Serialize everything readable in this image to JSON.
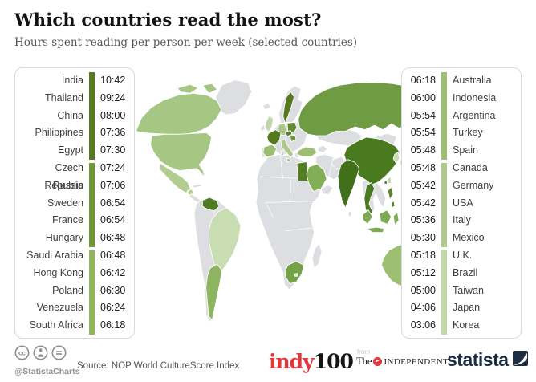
{
  "header": {
    "title": "Which countries read the most?",
    "subtitle": "Hours spent reading per person per week (selected countries)"
  },
  "chart_data": {
    "type": "heatmap",
    "subtype": "world-choropleth-with-ranked-lists",
    "title": "Which countries read the most?",
    "subtitle": "Hours spent reading per person per week (selected countries)",
    "unit": "hours:minutes per person per week",
    "series": [
      {
        "country": "India",
        "time": "10:42",
        "minutes": 642
      },
      {
        "country": "Thailand",
        "time": "09:24",
        "minutes": 564
      },
      {
        "country": "China",
        "time": "08:00",
        "minutes": 480
      },
      {
        "country": "Philippines",
        "time": "07:36",
        "minutes": 456
      },
      {
        "country": "Egypt",
        "time": "07:30",
        "minutes": 450
      },
      {
        "country": "Czech Republic",
        "time": "07:24",
        "minutes": 444
      },
      {
        "country": "Russia",
        "time": "07:06",
        "minutes": 426
      },
      {
        "country": "Sweden",
        "time": "06:54",
        "minutes": 414
      },
      {
        "country": "France",
        "time": "06:54",
        "minutes": 414
      },
      {
        "country": "Hungary",
        "time": "06:48",
        "minutes": 408
      },
      {
        "country": "Saudi Arabia",
        "time": "06:48",
        "minutes": 408
      },
      {
        "country": "Hong Kong",
        "time": "06:42",
        "minutes": 402
      },
      {
        "country": "Poland",
        "time": "06:30",
        "minutes": 390
      },
      {
        "country": "Venezuela",
        "time": "06:24",
        "minutes": 384
      },
      {
        "country": "South Africa",
        "time": "06:18",
        "minutes": 378
      },
      {
        "country": "Australia",
        "time": "06:18",
        "minutes": 378
      },
      {
        "country": "Indonesia",
        "time": "06:00",
        "minutes": 360
      },
      {
        "country": "Argentina",
        "time": "05:54",
        "minutes": 354
      },
      {
        "country": "Turkey",
        "time": "05:54",
        "minutes": 354
      },
      {
        "country": "Spain",
        "time": "05:48",
        "minutes": 348
      },
      {
        "country": "Canada",
        "time": "05:48",
        "minutes": 348
      },
      {
        "country": "Germany",
        "time": "05:42",
        "minutes": 342
      },
      {
        "country": "USA",
        "time": "05:42",
        "minutes": 342
      },
      {
        "country": "Italy",
        "time": "05:36",
        "minutes": 336
      },
      {
        "country": "Mexico",
        "time": "05:30",
        "minutes": 330
      },
      {
        "country": "U.K.",
        "time": "05:18",
        "minutes": 318
      },
      {
        "country": "Brazil",
        "time": "05:12",
        "minutes": 312
      },
      {
        "country": "Taiwan",
        "time": "05:00",
        "minutes": 300
      },
      {
        "country": "Japan",
        "time": "04:06",
        "minutes": 246
      },
      {
        "country": "Korea",
        "time": "03:06",
        "minutes": 186
      }
    ],
    "legend_position": "side-panels"
  },
  "left_panel": {
    "group_colors": [
      "#57791f",
      "#6f9737",
      "#8fb55f"
    ]
  },
  "right_panel": {
    "group_colors": [
      "#9cbf72",
      "#adca8a",
      "#c2d8a7"
    ]
  },
  "map": {
    "base_color": "#dcdee2",
    "colors": {
      "alaska": "#a6c683",
      "canada": "#a6c683",
      "usa": "#a6c683",
      "mexico": "#b2cd92",
      "venezuela": "#4f7b24",
      "brazil": "#c9ddb2",
      "argentina": "#8db45e",
      "uk": "#c0d6a7",
      "france": "#54791f",
      "spain": "#9bbf72",
      "germany": "#a9c887",
      "sweden": "#54791f",
      "poland": "#638c2f",
      "czech-republic": "#5a8028",
      "hungary": "#6f9737",
      "italy": "#abc88a",
      "turkey": "#9cbf72",
      "russia": "#6f9b42",
      "china": "#497a1e",
      "india": "#416f1a",
      "thailand": "#4a7a24",
      "egypt": "#527d22",
      "saudi-arabia": "#84ae55",
      "south-africa": "#74a347",
      "australia": "#9cbf72",
      "indonesia": "#7fa953",
      "japan": "#cfe2bd",
      "korea": "#c8ddb5",
      "philippines": "#5a8530",
      "taiwan": "#b9d3a0",
      "hong-kong": "#497a1e"
    }
  },
  "footer": {
    "handle": "@StatistaCharts",
    "source": "Source: NOP World CultureScore Index",
    "indy_red": "indy",
    "indy_black": "100",
    "from_label": "from",
    "independent_the": "The",
    "independent_name": "INDEPENDENT",
    "statista": "statista"
  }
}
